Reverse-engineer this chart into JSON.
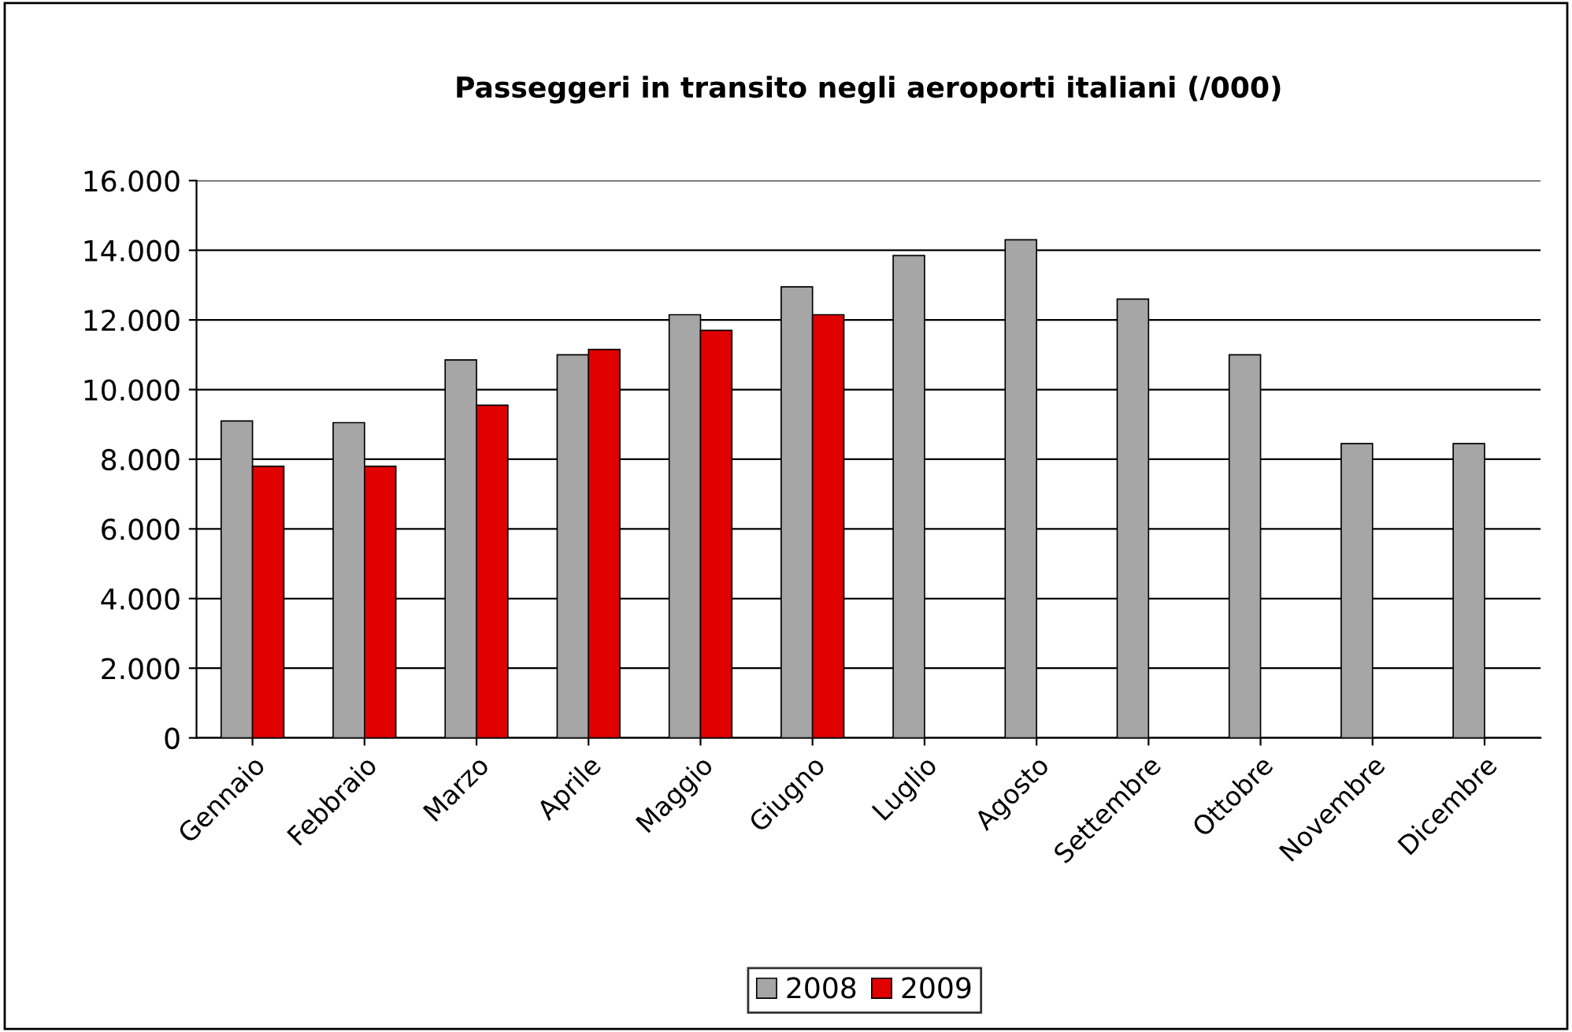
{
  "chart_data": {
    "type": "bar",
    "title": "Passeggeri in transito negli aeroporti italiani (/000)",
    "categories": [
      "Gennaio",
      "Febbraio",
      "Marzo",
      "Aprile",
      "Maggio",
      "Giugno",
      "Luglio",
      "Agosto",
      "Settembre",
      "Ottobre",
      "Novembre",
      "Dicembre"
    ],
    "series": [
      {
        "name": "2008",
        "color": "#a6a6a6",
        "values": [
          9100,
          9050,
          10850,
          11000,
          12150,
          12950,
          13850,
          14300,
          12600,
          11000,
          8450,
          8450
        ]
      },
      {
        "name": "2009",
        "color": "#e00000",
        "values": [
          7800,
          7800,
          9550,
          11150,
          11700,
          12150,
          null,
          null,
          null,
          null,
          null,
          null
        ]
      }
    ],
    "ylim": [
      0,
      16000
    ],
    "yticks": [
      0,
      {
        "value": 2000,
        "label": "2.000"
      },
      {
        "value": 4000,
        "label": "4.000"
      },
      {
        "value": 6000,
        "label": "6.000"
      },
      {
        "value": 8000,
        "label": "8.000"
      },
      {
        "value": 10000,
        "label": "10.000"
      },
      {
        "value": 12000,
        "label": "12.000"
      },
      {
        "value": 14000,
        "label": "14.000"
      },
      {
        "value": 16000,
        "label": "16.000"
      }
    ],
    "grid": "y",
    "legend": "bottom"
  }
}
